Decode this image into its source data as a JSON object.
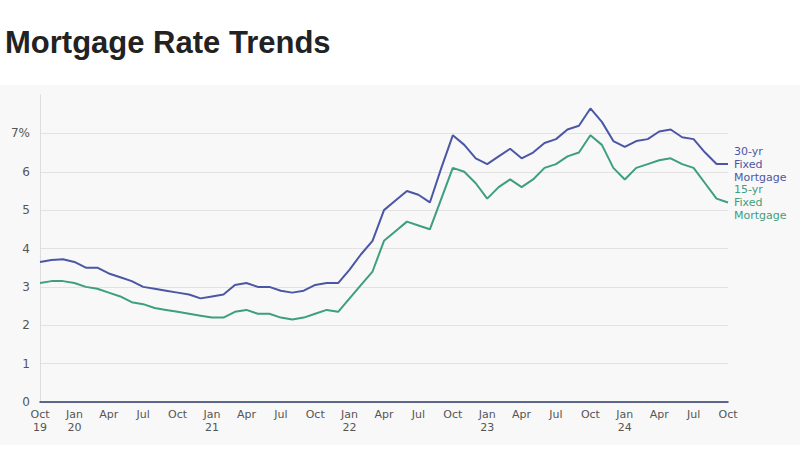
{
  "chart_data": {
    "type": "line",
    "title": "Mortgage Rate Trends",
    "categories": [
      "Oct\n19",
      null,
      null,
      "Jan\n20",
      null,
      null,
      "Apr",
      null,
      null,
      "Jul",
      null,
      null,
      "Oct",
      null,
      null,
      "Jan\n21",
      null,
      null,
      "Apr",
      null,
      null,
      "Jul",
      null,
      null,
      "Oct",
      null,
      null,
      "Jan\n22",
      null,
      null,
      "Apr",
      null,
      null,
      "Jul",
      null,
      null,
      "Oct",
      null,
      null,
      "Jan\n23",
      null,
      null,
      "Apr",
      null,
      null,
      "Jul",
      null,
      null,
      "Oct",
      null,
      null,
      "Jan\n24",
      null,
      null,
      "Apr",
      null,
      null,
      "Jul",
      null,
      null,
      "Oct"
    ],
    "series": [
      {
        "name": "30-yr\nFixed\nMortgage",
        "color": "#4b57a5",
        "values": [
          3.65,
          3.7,
          3.72,
          3.65,
          3.5,
          3.5,
          3.35,
          3.25,
          3.15,
          3.0,
          2.95,
          2.9,
          2.85,
          2.8,
          2.7,
          2.75,
          2.8,
          3.05,
          3.1,
          3.0,
          3.0,
          2.9,
          2.85,
          2.9,
          3.05,
          3.1,
          3.1,
          3.45,
          3.85,
          4.2,
          5.0,
          5.25,
          5.5,
          5.4,
          5.2,
          6.1,
          6.95,
          6.7,
          6.35,
          6.2,
          6.4,
          6.6,
          6.35,
          6.5,
          6.75,
          6.85,
          7.1,
          7.2,
          7.65,
          7.3,
          6.8,
          6.65,
          6.8,
          6.85,
          7.05,
          7.1,
          6.9,
          6.85,
          6.5,
          6.2,
          6.2
        ]
      },
      {
        "name": "15-yr\nFixed\nMortgage",
        "color": "#3d9e80",
        "values": [
          3.1,
          3.15,
          3.15,
          3.1,
          3.0,
          2.95,
          2.85,
          2.75,
          2.6,
          2.55,
          2.45,
          2.4,
          2.35,
          2.3,
          2.25,
          2.2,
          2.2,
          2.35,
          2.4,
          2.3,
          2.3,
          2.2,
          2.15,
          2.2,
          2.3,
          2.4,
          2.35,
          2.7,
          3.05,
          3.4,
          4.2,
          4.45,
          4.7,
          4.6,
          4.5,
          5.3,
          6.1,
          6.0,
          5.7,
          5.3,
          5.6,
          5.8,
          5.6,
          5.8,
          6.1,
          6.2,
          6.4,
          6.5,
          6.95,
          6.7,
          6.1,
          5.8,
          6.1,
          6.2,
          6.3,
          6.35,
          6.2,
          6.1,
          5.7,
          5.3,
          5.2
        ]
      }
    ],
    "ylim": [
      0,
      8
    ],
    "yticks": [
      0,
      1,
      2,
      3,
      4,
      5,
      6,
      {
        "value": 7,
        "label": "7%"
      }
    ],
    "grid": true
  }
}
